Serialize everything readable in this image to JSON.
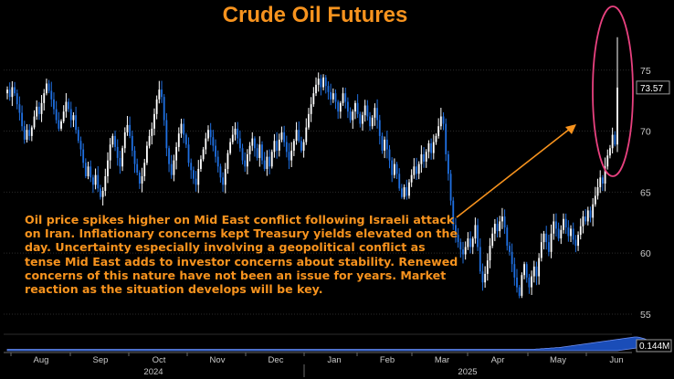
{
  "chart_data": {
    "type": "candlestick",
    "title": "Crude Oil Futures",
    "annotation": "Oil price spikes higher on Mid East conflict following Israeli attack on Iran. Inflationary concerns kept Treasury yields elevated on the day. Uncertainty especially involving a geopolitical conflict as tense Mid East adds to investor concerns about stability. Renewed concerns of this nature have not been an issue for years. Market reaction as the situation develops will be key.",
    "y_ticks": [
      55,
      60,
      65,
      70,
      75
    ],
    "ylim": [
      53.5,
      78.5
    ],
    "x_ticks": [
      "Aug",
      "Sep",
      "Oct",
      "Nov",
      "Dec",
      "Jan",
      "Feb",
      "Mar",
      "Apr",
      "May",
      "Jun"
    ],
    "years": [
      "2024",
      "2025"
    ],
    "last_price": 73.57,
    "volume_label": "0.144M",
    "colors": {
      "up": "#ffffff",
      "down": "#1f6fe0",
      "title": "#f7931e",
      "annotation": "#f7931e",
      "arrow": "#f7931e",
      "highlight_ellipse": "#e8417f",
      "volume_fill": "#1e5bd8"
    },
    "closes": [
      73.4,
      72.8,
      73.6,
      73.1,
      72.2,
      71.5,
      70.4,
      69.3,
      70.1,
      69.6,
      70.3,
      71.2,
      72.0,
      71.4,
      72.3,
      73.1,
      73.9,
      73.3,
      72.6,
      71.8,
      70.9,
      70.2,
      70.8,
      71.6,
      72.4,
      71.8,
      70.9,
      71.3,
      70.1,
      69.2,
      68.5,
      67.4,
      66.3,
      67.1,
      66.2,
      65.6,
      66.4,
      65.3,
      64.6,
      65.1,
      66.3,
      67.6,
      68.9,
      69.6,
      68.7,
      67.8,
      67.1,
      68.6,
      69.9,
      70.5,
      69.6,
      68.4,
      67.3,
      66.6,
      65.7,
      66.3,
      67.4,
      68.8,
      69.6,
      70.2,
      71.4,
      72.6,
      73.4,
      72.8,
      70.9,
      68.6,
      67.3,
      66.4,
      67.6,
      68.7,
      69.8,
      70.6,
      69.7,
      68.9,
      67.4,
      66.8,
      66.1,
      65.6,
      66.9,
      67.7,
      68.5,
      69.4,
      70.1,
      69.5,
      68.8,
      67.9,
      67.1,
      66.2,
      65.6,
      66.9,
      68.2,
      69.1,
      69.7,
      70.2,
      69.4,
      68.6,
      67.6,
      67.1,
      68.1,
      68.8,
      69.4,
      68.6,
      67.8,
      68.9,
      67.6,
      66.9,
      67.9,
      67.1,
      68.3,
      69.2,
      68.4,
      69.3,
      69.9,
      69.1,
      68.3,
      67.6,
      68.4,
      69.2,
      70.1,
      69.2,
      68.4,
      69.1,
      70.3,
      71.4,
      72.2,
      73.1,
      73.8,
      74.3,
      73.6,
      74.4,
      73.7,
      73.2,
      72.6,
      73.1,
      72.4,
      71.6,
      72.3,
      73.1,
      72.4,
      71.6,
      70.9,
      71.6,
      72.3,
      71.4,
      70.6,
      71.3,
      72.1,
      71.2,
      70.4,
      71.1,
      71.9,
      70.9,
      69.6,
      68.4,
      69.3,
      68.5,
      67.6,
      66.4,
      67.3,
      66.5,
      65.3,
      64.6,
      65.4,
      64.7,
      65.8,
      66.4,
      67.1,
      66.5,
      67.3,
      68.1,
      67.5,
      68.3,
      69.0,
      68.2,
      69.1,
      69.6,
      70.4,
      71.2,
      70.6,
      68.1,
      66.5,
      64.3,
      62.3,
      61.5,
      60.9,
      60.3,
      59.9,
      60.5,
      61.2,
      60.5,
      61.2,
      62.3,
      60.5,
      58.5,
      57.6,
      58.3,
      59.4,
      60.6,
      61.6,
      62.4,
      61.8,
      62.6,
      63.0,
      62.1,
      60.6,
      60.1,
      59.1,
      58.0,
      57.2,
      56.5,
      58.2,
      59.1,
      58.0,
      57.2,
      58.1,
      58.9,
      58.1,
      59.6,
      60.9,
      61.6,
      60.9,
      60.1,
      61.6,
      62.6,
      62.0,
      61.2,
      61.9,
      62.8,
      62.1,
      61.4,
      62.0,
      61.1,
      60.6,
      61.5,
      62.2,
      63.0,
      62.6,
      63.5,
      62.9,
      64.0,
      64.7,
      65.4,
      66.2,
      65.7,
      67.1,
      68.0,
      68.6,
      69.7,
      68.9,
      73.57
    ],
    "volume": [
      4,
      4,
      4,
      4,
      4,
      4,
      4,
      4,
      4,
      4,
      4,
      4,
      4,
      4,
      4,
      4,
      4,
      4,
      4,
      4,
      4,
      4,
      4,
      4,
      4,
      4,
      4,
      4,
      4,
      4,
      4,
      4,
      4,
      4,
      4,
      4,
      4,
      4,
      4,
      4,
      4,
      4,
      4,
      4,
      4,
      4,
      4,
      4,
      4,
      4,
      4,
      4,
      4,
      4,
      4,
      4,
      4,
      4,
      4,
      4,
      4,
      4,
      4,
      4,
      4,
      4,
      4,
      4,
      4,
      4,
      4,
      4,
      4,
      4,
      4,
      4,
      4,
      4,
      4,
      4,
      4,
      4,
      4,
      4,
      4,
      4,
      4,
      4,
      4,
      4,
      4,
      4,
      4,
      4,
      4,
      4,
      4,
      4,
      4,
      4,
      4,
      4,
      4,
      4,
      4,
      4,
      4,
      4,
      4,
      4,
      4,
      4,
      4,
      4,
      4,
      4,
      4,
      4,
      4,
      4,
      4,
      4,
      4,
      4,
      4,
      4,
      4,
      4,
      4,
      4,
      4,
      4,
      4,
      4,
      4,
      4,
      4,
      4,
      4,
      4,
      4,
      4,
      4,
      4,
      4,
      4,
      4,
      4,
      4,
      4,
      4,
      4,
      4,
      4,
      4,
      4,
      4,
      4,
      4,
      4,
      4,
      4,
      4,
      4,
      4,
      4,
      4,
      4,
      4,
      4,
      4,
      4,
      4,
      4,
      4,
      4,
      4,
      4,
      4,
      4,
      4,
      4,
      4,
      4,
      4,
      4,
      4,
      4,
      4,
      4,
      4,
      4,
      4,
      4,
      4,
      4,
      4,
      4,
      4,
      4,
      4,
      4,
      4,
      4,
      4,
      4,
      4,
      4,
      4,
      4,
      4,
      4,
      4,
      4,
      4,
      4,
      5,
      5,
      6,
      6,
      7,
      7,
      8,
      8,
      9,
      9,
      10,
      11,
      12,
      13,
      14,
      15,
      16,
      17,
      18,
      19,
      20,
      21,
      22,
      23,
      24,
      25,
      26,
      27,
      28,
      29,
      30,
      31,
      32,
      33,
      34,
      35,
      36,
      37,
      38,
      39,
      40,
      40,
      39,
      37,
      35,
      32,
      28,
      24,
      20,
      16
    ]
  }
}
